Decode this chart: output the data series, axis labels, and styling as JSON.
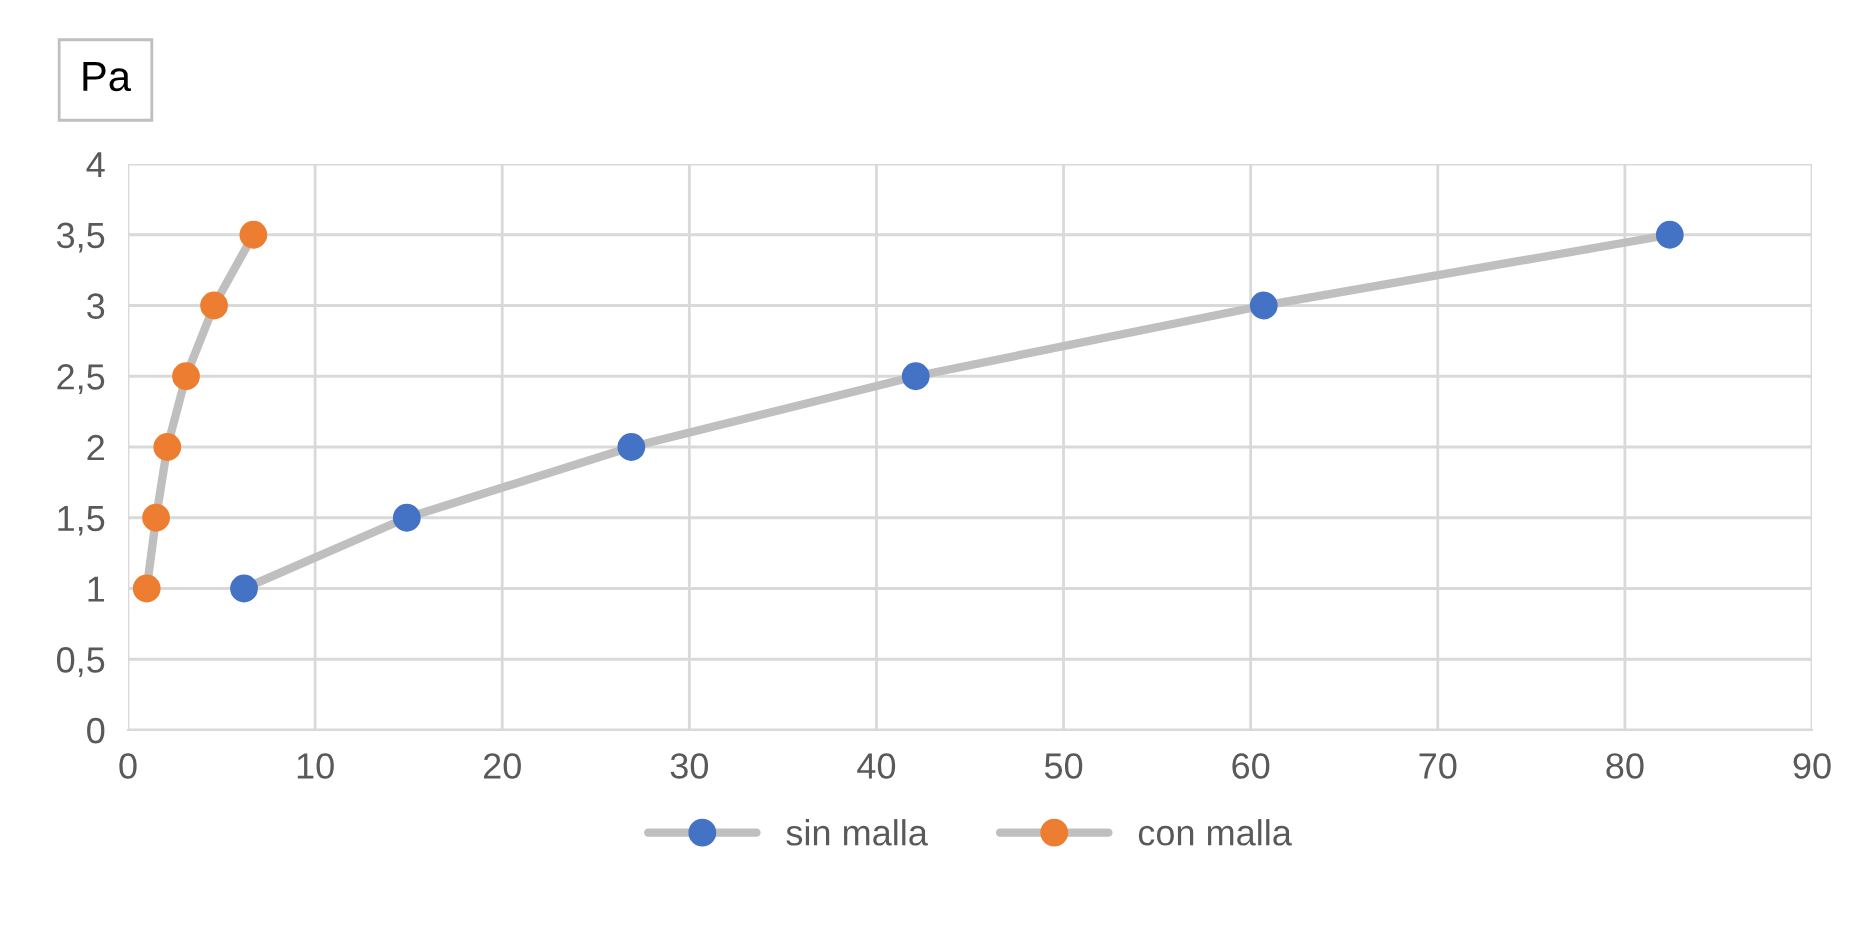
{
  "chart_data": {
    "type": "line",
    "ylabel": "Pa",
    "xlim": [
      0,
      90
    ],
    "xticks": [
      0,
      10,
      20,
      30,
      40,
      50,
      60,
      70,
      80,
      90
    ],
    "ylim": [
      0,
      4
    ],
    "yticks": [
      0,
      {
        "value": 0.5,
        "label": "0,5"
      },
      1,
      {
        "value": 1.5,
        "label": "1,5"
      },
      2,
      {
        "value": 2.5,
        "label": "2,5"
      },
      3,
      {
        "value": 3.5,
        "label": "3,5"
      },
      4
    ],
    "grid": true,
    "legend": "bottom",
    "marker": "circle",
    "line_style": "solid",
    "series": [
      {
        "name": "sin malla",
        "color": "#4472c4",
        "x": [
          6.2,
          14.9,
          26.9,
          42.1,
          60.7,
          82.4
        ],
        "values": [
          1,
          1.5,
          2,
          2.5,
          3,
          3.5
        ]
      },
      {
        "name": "con malla",
        "color": "#ed7d31",
        "x": [
          1.0,
          1.5,
          2.1,
          3.1,
          4.6,
          6.7
        ],
        "values": [
          1,
          1.5,
          2,
          2.5,
          3,
          3.5
        ]
      }
    ]
  }
}
